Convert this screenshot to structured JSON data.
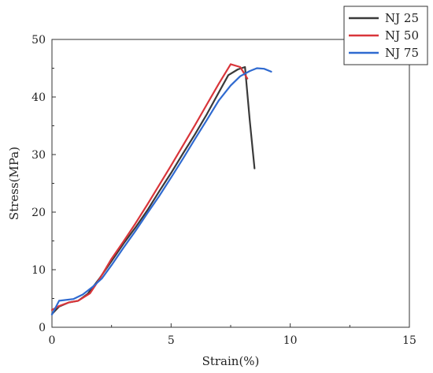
{
  "chart_data": {
    "type": "line",
    "xlabel": "Strain(%)",
    "ylabel": "Stress(MPa)",
    "xlim": [
      0,
      15
    ],
    "ylim": [
      0,
      50
    ],
    "xticks": [
      "0",
      "5",
      "10",
      "15"
    ],
    "yticks": [
      "0",
      "10",
      "20",
      "30",
      "40",
      "50"
    ],
    "grid": false,
    "legend": "top-right-outside",
    "series": [
      {
        "name": "NJ 25",
        "color": "#3a3a3a",
        "x": [
          0,
          0.3,
          0.7,
          1.1,
          1.5,
          2.0,
          2.5,
          3.0,
          3.5,
          4.0,
          4.5,
          5.0,
          5.5,
          6.0,
          6.5,
          7.0,
          7.4,
          7.8,
          8.1,
          8.3,
          8.5
        ],
        "y": [
          2.3,
          3.6,
          4.3,
          4.6,
          5.8,
          8.5,
          11.5,
          14.5,
          17.3,
          20.3,
          23.6,
          26.8,
          30.2,
          33.5,
          37.0,
          40.8,
          43.8,
          44.8,
          45.2,
          36.0,
          27.6
        ]
      },
      {
        "name": "NJ 50",
        "color": "#d9353a",
        "x": [
          0,
          0.3,
          0.7,
          1.1,
          1.6,
          2.0,
          2.5,
          3.0,
          3.5,
          4.0,
          4.5,
          5.0,
          5.5,
          6.0,
          6.5,
          7.0,
          7.5,
          7.9,
          8.2
        ],
        "y": [
          3.0,
          3.7,
          4.3,
          4.6,
          5.9,
          8.4,
          11.9,
          14.9,
          18.0,
          21.3,
          24.7,
          28.1,
          31.6,
          35.1,
          38.7,
          42.3,
          45.7,
          45.2,
          43.2
        ]
      },
      {
        "name": "NJ 75",
        "color": "#2f6ad0",
        "x": [
          0,
          0.3,
          0.9,
          1.3,
          1.7,
          2.1,
          2.5,
          3.0,
          3.5,
          4.0,
          4.5,
          5.0,
          5.5,
          6.0,
          6.5,
          7.0,
          7.5,
          7.9,
          8.3,
          8.6,
          8.9,
          9.2
        ],
        "y": [
          2.2,
          4.6,
          4.9,
          5.7,
          7.0,
          8.5,
          10.8,
          13.8,
          16.7,
          19.8,
          22.8,
          26.0,
          29.3,
          32.7,
          36.0,
          39.4,
          42.0,
          43.6,
          44.5,
          45.0,
          44.9,
          44.4
        ]
      }
    ]
  }
}
